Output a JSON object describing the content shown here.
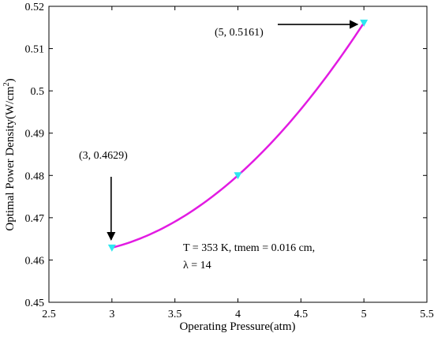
{
  "chart_data": {
    "type": "line",
    "xlabel": "Operating Pressure(atm)",
    "ylabel": "Optimal Power Density(W/cm",
    "ylabel_sup": "2",
    "ylabel_close": ")",
    "xlim": [
      2.5,
      5.5
    ],
    "ylim": [
      0.45,
      0.52
    ],
    "xticks": [
      2.5,
      3,
      3.5,
      4,
      4.5,
      5,
      5.5
    ],
    "xtick_labels": [
      "2.5",
      "3",
      "3.5",
      "4",
      "4.5",
      "5",
      "5.5"
    ],
    "yticks": [
      0.45,
      0.46,
      0.47,
      0.48,
      0.49,
      0.5,
      0.51,
      0.52
    ],
    "ytick_labels": [
      "0.45",
      "0.46",
      "0.47",
      "0.48",
      "0.49",
      "0.5",
      "0.51",
      "0.52"
    ],
    "grid": false,
    "series": [
      {
        "color": "#e21be2",
        "marker": "triangle-down",
        "marker_color": "#2ee6f0",
        "x": [
          3,
          4,
          5
        ],
        "y": [
          0.4629,
          0.48,
          0.5161
        ]
      }
    ],
    "annotations": [
      {
        "text": "(5, 0.5161)",
        "point": [
          5,
          0.5161
        ]
      },
      {
        "text": "(3, 0.4629)",
        "point": [
          3,
          0.4629
        ]
      }
    ],
    "notes": [
      "T = 353 K, tmem = 0.016 cm,",
      "λ = 14"
    ]
  }
}
